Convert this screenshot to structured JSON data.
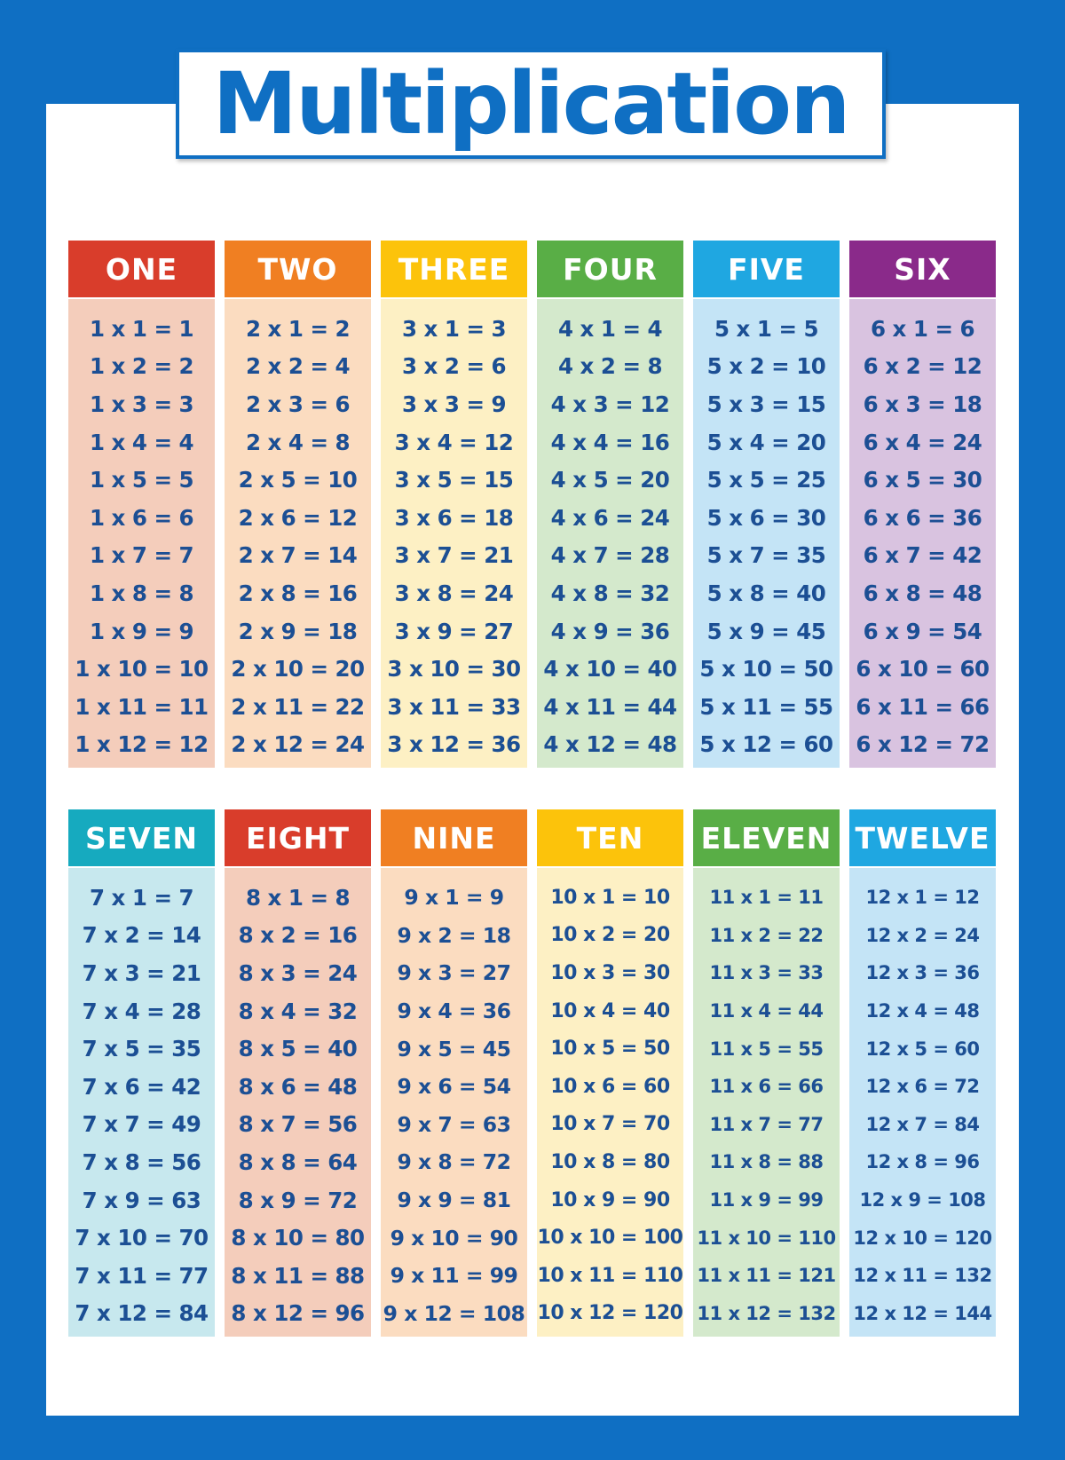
{
  "title": "Multiplication",
  "colors": {
    "frame": "#0f6fc3",
    "text": "#1c4f94"
  },
  "tables": [
    {
      "name": "ONE",
      "header_color": "#d93d2b",
      "body_color": "#f4cdbb",
      "rows": [
        "1 x 1 = 1",
        "1 x 2 = 2",
        "1 x 3 = 3",
        "1 x 4 = 4",
        "1 x 5 = 5",
        "1 x 6 = 6",
        "1 x 7 = 7",
        "1 x 8 = 8",
        "1 x 9 = 9",
        "1 x 10 = 10",
        "1 x 11 = 11",
        "1 x 12 = 12"
      ]
    },
    {
      "name": "TWO",
      "header_color": "#f07f22",
      "body_color": "#fbdcc0",
      "rows": [
        "2 x 1 = 2",
        "2 x 2 = 4",
        "2 x 3 = 6",
        "2 x 4 = 8",
        "2 x 5 = 10",
        "2 x 6 = 12",
        "2 x 7 = 14",
        "2 x 8 = 16",
        "2 x 9 = 18",
        "2 x 10 = 20",
        "2 x 11 = 22",
        "2 x 12 = 24"
      ]
    },
    {
      "name": "THREE",
      "header_color": "#fcc30b",
      "body_color": "#fdf0c4",
      "rows": [
        "3 x 1 = 3",
        "3 x 2 = 6",
        "3 x 3 = 9",
        "3 x 4 = 12",
        "3 x 5 = 15",
        "3 x 6 = 18",
        "3 x 7 = 21",
        "3 x 8 = 24",
        "3 x 9 = 27",
        "3 x 10 = 30",
        "3 x 11 = 33",
        "3 x 12 = 36"
      ]
    },
    {
      "name": "FOUR",
      "header_color": "#59ae46",
      "body_color": "#d4e9cc",
      "rows": [
        "4 x 1 = 4",
        "4 x 2 = 8",
        "4 x 3 = 12",
        "4 x 4 = 16",
        "4 x 5 = 20",
        "4 x 6 = 24",
        "4 x 7 = 28",
        "4 x 8 = 32",
        "4 x 9 = 36",
        "4 x 10 = 40",
        "4 x 11 = 44",
        "4 x 12 = 48"
      ]
    },
    {
      "name": "FIVE",
      "header_color": "#1fa7e1",
      "body_color": "#c4e4f6",
      "rows": [
        "5 x 1 = 5",
        "5 x 2 = 10",
        "5 x 3 = 15",
        "5 x 4 = 20",
        "5 x 5 = 25",
        "5 x 6 = 30",
        "5 x 7 = 35",
        "5 x 8 = 40",
        "5 x 9 = 45",
        "5 x 10 = 50",
        "5 x 11 = 55",
        "5 x 12 = 60"
      ]
    },
    {
      "name": "SIX",
      "header_color": "#8a2a8a",
      "body_color": "#d9c3e0",
      "rows": [
        "6 x 1 = 6",
        "6 x 2 = 12",
        "6 x 3 = 18",
        "6 x 4 = 24",
        "6 x 5 = 30",
        "6 x 6 = 36",
        "6 x 7 = 42",
        "6 x 8 = 48",
        "6 x 9 = 54",
        "6 x 10 = 60",
        "6 x 11 = 66",
        "6 x 12 = 72"
      ]
    },
    {
      "name": "SEVEN",
      "header_color": "#16aabf",
      "body_color": "#c7e8ee",
      "rows": [
        "7 x 1 = 7",
        "7 x 2 = 14",
        "7 x 3 = 21",
        "7 x 4 = 28",
        "7 x 5 = 35",
        "7 x 6 = 42",
        "7 x 7 = 49",
        "7 x 8 = 56",
        "7 x 9 = 63",
        "7 x 10 = 70",
        "7 x 11 = 77",
        "7 x 12 = 84"
      ]
    },
    {
      "name": "EIGHT",
      "header_color": "#d93d2b",
      "body_color": "#f4cdbb",
      "rows": [
        "8 x 1 = 8",
        "8 x 2 = 16",
        "8 x 3 = 24",
        "8 x 4 = 32",
        "8 x 5 = 40",
        "8 x 6 = 48",
        "8 x 7 = 56",
        "8 x 8 = 64",
        "8 x 9 = 72",
        "8 x 10 = 80",
        "8 x 11 = 88",
        "8 x 12 = 96"
      ]
    },
    {
      "name": "NINE",
      "header_color": "#f07f22",
      "body_color": "#fbdcc0",
      "rows": [
        "9 x 1 = 9",
        "9 x 2 = 18",
        "9 x 3 = 27",
        "9 x 4 = 36",
        "9 x 5 = 45",
        "9 x 6 = 54",
        "9 x 7 = 63",
        "9 x 8 = 72",
        "9 x 9 = 81",
        "9 x 10 = 90",
        "9 x 11 = 99",
        "9 x 12 = 108"
      ]
    },
    {
      "name": "TEN",
      "header_color": "#fcc30b",
      "body_color": "#fdf0c4",
      "rows": [
        "10 x 1 = 10",
        "10 x 2 = 20",
        "10 x 3 = 30",
        "10 x 4 = 40",
        "10 x 5 = 50",
        "10 x 6 = 60",
        "10 x 7 = 70",
        "10 x 8 = 80",
        "10 x 9 = 90",
        "10 x 10 = 100",
        "10 x 11 = 110",
        "10 x 12 = 120"
      ]
    },
    {
      "name": "ELEVEN",
      "header_color": "#59ae46",
      "body_color": "#d4e9cc",
      "rows": [
        "11 x 1 = 11",
        "11 x 2 = 22",
        "11 x 3 = 33",
        "11 x 4 = 44",
        "11 x 5 = 55",
        "11 x 6 = 66",
        "11 x 7 = 77",
        "11 x 8 = 88",
        "11 x 9 = 99",
        "11 x 10 = 110",
        "11 x 11 = 121",
        "11 x 12 = 132"
      ]
    },
    {
      "name": "TWELVE",
      "header_color": "#1fa7e1",
      "body_color": "#c4e4f6",
      "rows": [
        "12 x 1 = 12",
        "12 x 2 = 24",
        "12 x 3 = 36",
        "12 x 4 = 48",
        "12 x 5 = 60",
        "12 x 6 = 72",
        "12 x 7 = 84",
        "12 x 8 = 96",
        "12 x 9 = 108",
        "12 x 10 = 120",
        "12 x 11 = 132",
        "12 x 12 = 144"
      ]
    }
  ]
}
